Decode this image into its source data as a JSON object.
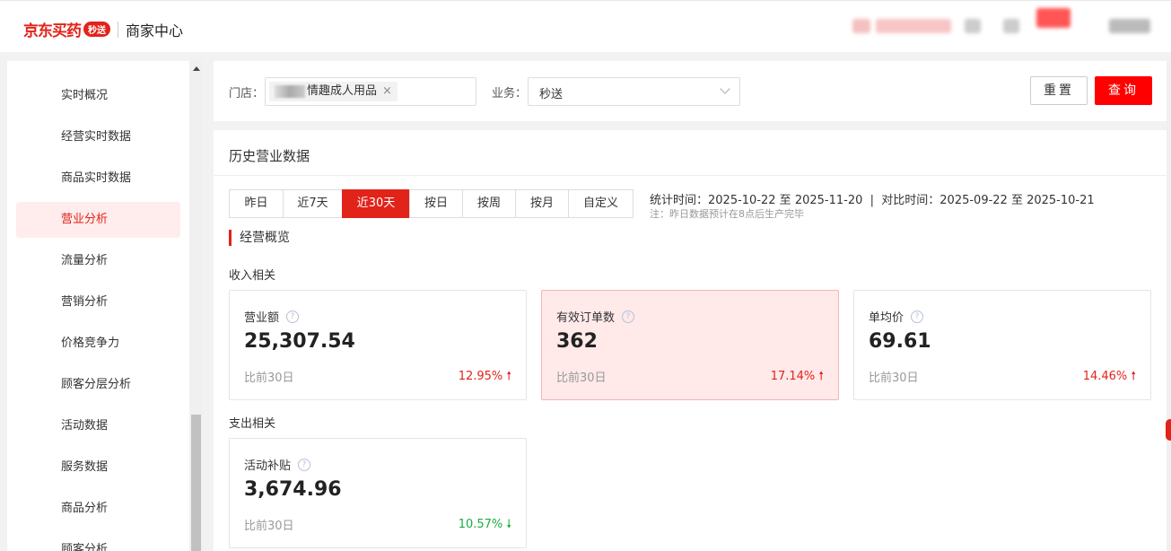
{
  "header": {
    "brand": "京东买药",
    "brand_badge": "秒送",
    "subtitle": "商家中心"
  },
  "sidebar": {
    "items": [
      {
        "label": "实时概况"
      },
      {
        "label": "经营实时数据"
      },
      {
        "label": "商品实时数据"
      },
      {
        "label": "营业分析",
        "active": true
      },
      {
        "label": "流量分析"
      },
      {
        "label": "营销分析"
      },
      {
        "label": "价格竞争力"
      },
      {
        "label": "顾客分层分析"
      },
      {
        "label": "活动数据"
      },
      {
        "label": "服务数据"
      },
      {
        "label": "商品分析"
      },
      {
        "label": "顾客分析"
      }
    ]
  },
  "filter": {
    "store_label": "门店：",
    "store_tag": "情趣成人用品",
    "business_label": "业务：",
    "business_value": "秒送",
    "reset": "重置",
    "query": "查询"
  },
  "history": {
    "title": "历史营业数据",
    "tabs": [
      {
        "label": "昨日"
      },
      {
        "label": "近7天"
      },
      {
        "label": "近30天",
        "active": true
      },
      {
        "label": "按日"
      },
      {
        "label": "按周"
      },
      {
        "label": "按月"
      },
      {
        "label": "自定义"
      }
    ],
    "stat_time": "统计时间：2025-10-22 至 2025-11-20  |  对比时间：2025-09-22 至 2025-10-21",
    "note": "注：昨日数据预计在8点后生产完毕",
    "section": "经营概览",
    "income_group": "收入相关",
    "expense_group": "支出相关",
    "metrics": [
      {
        "name": "营业额",
        "value": "25,307.54",
        "compare": "比前30日",
        "pct": "12.95%",
        "trend": "up"
      },
      {
        "name": "有效订单数",
        "value": "362",
        "compare": "比前30日",
        "pct": "17.14%",
        "trend": "up"
      },
      {
        "name": "单均价",
        "value": "69.61",
        "compare": "比前30日",
        "pct": "14.46%",
        "trend": "up"
      },
      {
        "name": "活动补贴",
        "value": "3,674.96",
        "compare": "比前30日",
        "pct": "10.57%",
        "trend": "down"
      }
    ]
  },
  "colors": {
    "accent": "#e2231a",
    "up": "#e2231a",
    "down": "#1aad3b"
  }
}
